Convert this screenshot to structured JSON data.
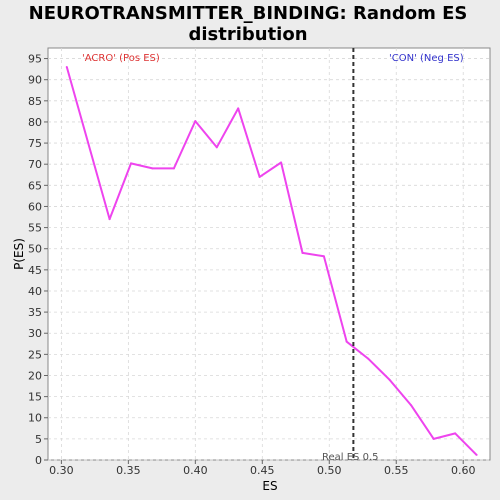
{
  "chart_data": {
    "type": "line",
    "title_lines": [
      "NEUROTRANSMITTER_BINDING: Random ES",
      "distribution"
    ],
    "xlabel": "ES",
    "ylabel": "P(ES)",
    "xlim": [
      0.29,
      0.62
    ],
    "ylim": [
      0,
      97.5
    ],
    "xticks": [
      0.3,
      0.35,
      0.4,
      0.45,
      0.5,
      0.55,
      0.6
    ],
    "xtick_labels": [
      "0.30",
      "0.35",
      "0.40",
      "0.45",
      "0.50",
      "0.55",
      "0.60"
    ],
    "yticks": [
      0,
      5,
      10,
      15,
      20,
      25,
      30,
      35,
      40,
      45,
      50,
      55,
      60,
      65,
      70,
      75,
      80,
      85,
      90,
      95
    ],
    "grid": true,
    "series": [
      {
        "color": "#ee44ee",
        "x": [
          0.304,
          0.336,
          0.352,
          0.368,
          0.384,
          0.4,
          0.416,
          0.432,
          0.448,
          0.464,
          0.48,
          0.496,
          0.513,
          0.529,
          0.545,
          0.561,
          0.578,
          0.594,
          0.61
        ],
        "y": [
          93,
          57,
          70.2,
          69,
          69,
          80.2,
          74,
          83.2,
          67,
          70.4,
          49,
          48.2,
          28,
          24,
          19,
          13,
          5,
          6.3,
          1.2
        ]
      }
    ],
    "annotations": {
      "left_label": "'ACRO' (Pos ES)",
      "left_color": "#dd3333",
      "right_label": "'CON' (Neg ES)",
      "right_color": "#3333cc",
      "real_es_label": "Real ES 0.5",
      "real_es_value": 0.518
    }
  }
}
